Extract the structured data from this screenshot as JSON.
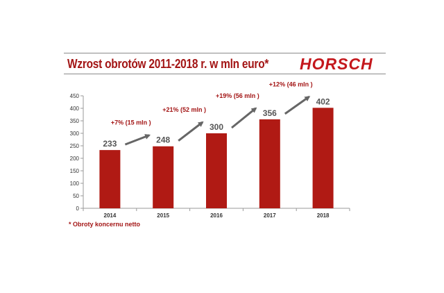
{
  "header": {
    "title": "Wzrost obrotów 2011-2018 r. w mln euro*",
    "logo_text": "HORSCH"
  },
  "footnote": "* Obroty koncernu netto",
  "colors": {
    "bar": "#b01a14",
    "title": "#a31515",
    "growth_label": "#a31515",
    "arrow": "#666666",
    "value_label": "#555555",
    "axis_text": "#333333"
  },
  "chart_data": {
    "type": "bar",
    "title": "",
    "xlabel": "",
    "ylabel": "",
    "categories": [
      "2014",
      "2015",
      "2016",
      "2017",
      "2018"
    ],
    "values": [
      233,
      248,
      300,
      356,
      402
    ],
    "data_labels": [
      "233",
      "248",
      "300",
      "356",
      "402"
    ],
    "ylim": [
      0,
      450
    ],
    "yticks": [
      0,
      50,
      100,
      150,
      200,
      250,
      300,
      350,
      400,
      450
    ],
    "grid": false,
    "legend": "none",
    "growth_annotations": [
      {
        "from": "2014",
        "to": "2015",
        "label": "+7% (15 mln )"
      },
      {
        "from": "2015",
        "to": "2016",
        "label": "+21% (52 mln )"
      },
      {
        "from": "2016",
        "to": "2017",
        "label": "+19% (56 mln )"
      },
      {
        "from": "2017",
        "to": "2018",
        "label": "+12% (46 mln )"
      }
    ]
  }
}
